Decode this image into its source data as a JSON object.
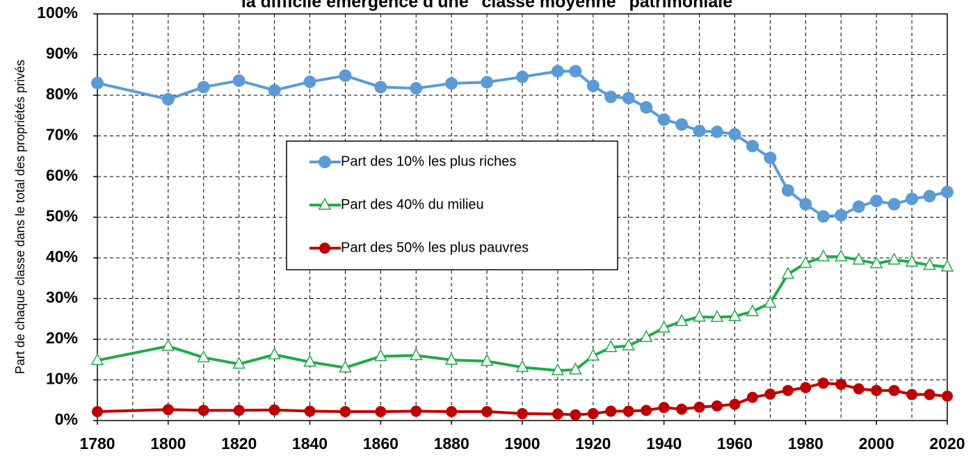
{
  "chart_data": {
    "type": "line",
    "title": "la difficile émergence d'une \"classe moyenne\" patrimoniale",
    "y_label": "Part de chaque classe dans le total des propriétés privés",
    "x": [
      1780,
      1800,
      1810,
      1820,
      1830,
      1840,
      1850,
      1860,
      1870,
      1880,
      1890,
      1900,
      1910,
      1915,
      1920,
      1925,
      1930,
      1935,
      1940,
      1945,
      1950,
      1955,
      1960,
      1965,
      1970,
      1975,
      1980,
      1985,
      1990,
      1995,
      2000,
      2005,
      2010,
      2015,
      2020
    ],
    "series": [
      {
        "name": "Part des 10% les plus riches",
        "color": "#5b9bd5",
        "marker": "circle",
        "values": [
          83,
          79,
          82,
          83.6,
          81.2,
          83.3,
          84.8,
          82,
          81.7,
          82.9,
          83.2,
          84.5,
          85.9,
          85.9,
          82.3,
          79.6,
          79.3,
          77,
          74,
          72.8,
          71.2,
          71,
          70.4,
          67.5,
          64.6,
          56.6,
          53.2,
          50.2,
          50.5,
          52.6,
          54,
          53.2,
          54.5,
          55.2,
          56.2
        ]
      },
      {
        "name": "Part des 40% du milieu",
        "color": "#1faa4a",
        "marker": "triangle",
        "values": [
          14.8,
          18.3,
          15.5,
          13.9,
          16.2,
          14.4,
          13,
          15.8,
          16,
          14.9,
          14.6,
          13.1,
          12.3,
          12.5,
          15.9,
          18,
          18.4,
          20.5,
          22.8,
          24.4,
          25.5,
          25.4,
          25.6,
          26.8,
          28.9,
          36,
          38.7,
          40.3,
          40.3,
          39.5,
          38.6,
          39.5,
          39,
          38.2,
          37.8
        ]
      },
      {
        "name": "Part des 50% les plus pauvres",
        "color": "#c00000",
        "marker": "circle",
        "values": [
          2.2,
          2.7,
          2.5,
          2.5,
          2.6,
          2.3,
          2.2,
          2.2,
          2.3,
          2.2,
          2.2,
          1.7,
          1.6,
          1.4,
          1.7,
          2.3,
          2.3,
          2.5,
          3.2,
          2.8,
          3.3,
          3.6,
          4,
          5.7,
          6.5,
          7.4,
          8.1,
          9.2,
          8.9,
          7.8,
          7.4,
          7.4,
          6.4,
          6.4,
          6.0
        ]
      }
    ],
    "xlim": [
      1780,
      2020
    ],
    "xticks": [
      1780,
      1800,
      1820,
      1840,
      1860,
      1880,
      1900,
      1920,
      1940,
      1960,
      1980,
      2000,
      2020
    ],
    "ylim": [
      0,
      100
    ],
    "yticks": [
      {
        "value": 0,
        "label": "0%"
      },
      {
        "value": 10,
        "label": "10%"
      },
      {
        "value": 20,
        "label": "20%"
      },
      {
        "value": 30,
        "label": "30%"
      },
      {
        "value": 40,
        "label": "40%"
      },
      {
        "value": 50,
        "label": "50%"
      },
      {
        "value": 60,
        "label": "60%"
      },
      {
        "value": 70,
        "label": "70%"
      },
      {
        "value": 80,
        "label": "80%"
      },
      {
        "value": 90,
        "label": "90%"
      },
      {
        "value": 100,
        "label": "100%"
      }
    ],
    "grid": true
  }
}
